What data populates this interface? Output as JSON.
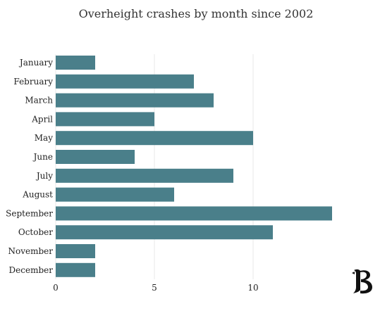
{
  "chart_data": {
    "type": "bar",
    "orientation": "horizontal",
    "title": "Overheight crashes by month since 2002",
    "categories": [
      "January",
      "February",
      "March",
      "April",
      "May",
      "June",
      "July",
      "August",
      "September",
      "October",
      "November",
      "December"
    ],
    "values": [
      2,
      7,
      8,
      5,
      10,
      4,
      9,
      6,
      14,
      11,
      2,
      2
    ],
    "xticks": [
      0,
      5,
      10
    ],
    "xlim": [
      0,
      15
    ],
    "xlabel": "",
    "ylabel": "",
    "grid": true,
    "colors": {
      "bar": "#4a7f8a",
      "grid": "#e8e8e8"
    }
  },
  "brand": {
    "logo": "blackletter-B-logo",
    "letter": "B"
  }
}
